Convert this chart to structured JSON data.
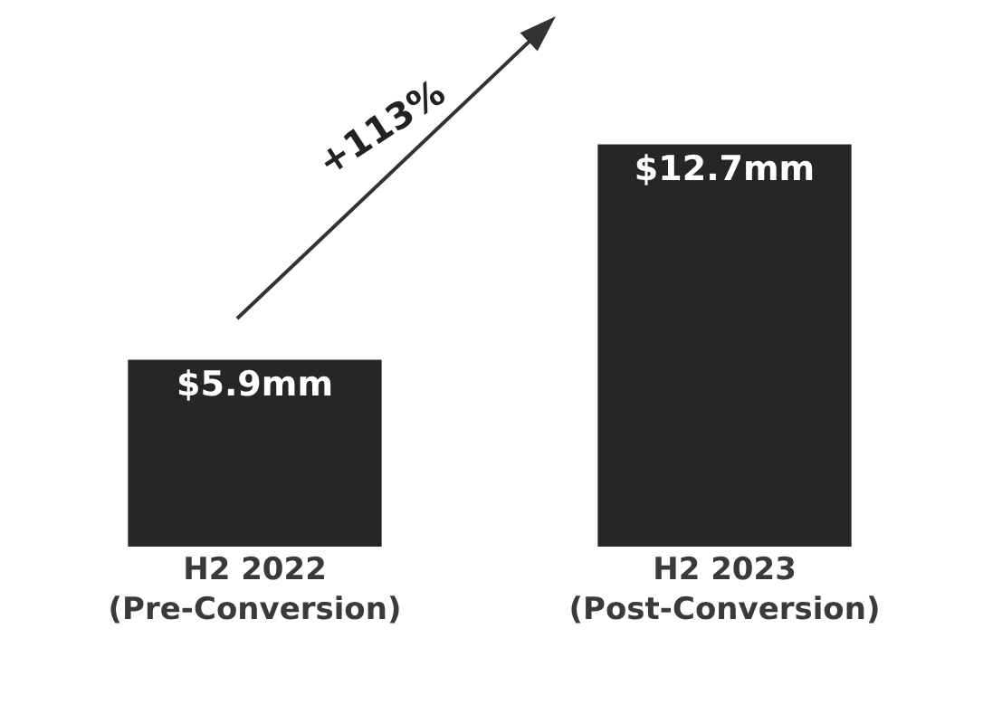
{
  "chart_data": {
    "type": "bar",
    "categories": [
      "H2 2022\n(Pre-Conversion)",
      "H2 2023\n(Post-Conversion)"
    ],
    "values": [
      5.9,
      12.7
    ],
    "value_labels": [
      "$5.9mm",
      "$12.7mm"
    ],
    "color": "#262626",
    "annotations": [
      "+113%"
    ],
    "grid": false
  }
}
